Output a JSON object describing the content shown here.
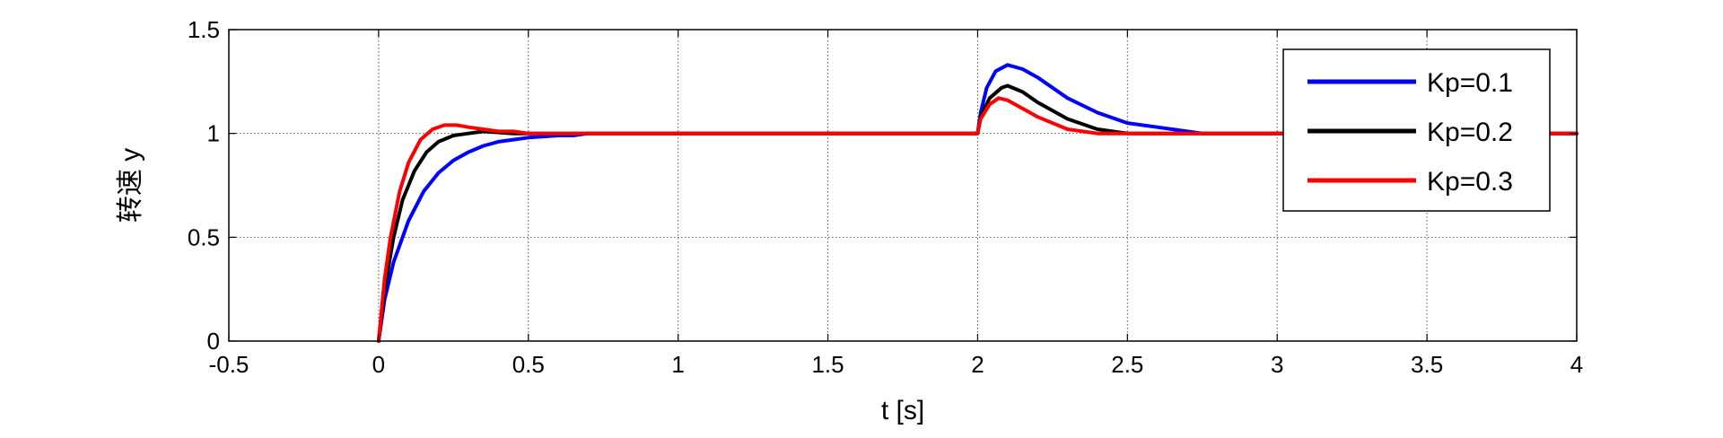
{
  "chart_data": {
    "type": "line",
    "xlabel": "t [s]",
    "ylabel": "转速 y",
    "xlim": [
      -0.5,
      4
    ],
    "ylim": [
      0,
      1.5
    ],
    "x_ticks": [
      -0.5,
      0,
      0.5,
      1,
      1.5,
      2,
      2.5,
      3,
      3.5,
      4
    ],
    "x_tick_labels": [
      "-0.5",
      "0",
      "0.5",
      "1",
      "1.5",
      "2",
      "2.5",
      "3",
      "3.5",
      "4"
    ],
    "y_ticks": [
      0,
      0.5,
      1,
      1.5
    ],
    "y_tick_labels": [
      "0",
      "0.5",
      "1",
      "1.5"
    ],
    "grid": true,
    "legend_position": "top-right",
    "series": [
      {
        "name": "Kp=0.1",
        "color": "#0000ff",
        "points": [
          [
            0,
            0
          ],
          [
            0.02,
            0.2
          ],
          [
            0.05,
            0.38
          ],
          [
            0.1,
            0.58
          ],
          [
            0.15,
            0.72
          ],
          [
            0.2,
            0.81
          ],
          [
            0.25,
            0.87
          ],
          [
            0.3,
            0.91
          ],
          [
            0.35,
            0.94
          ],
          [
            0.4,
            0.96
          ],
          [
            0.45,
            0.97
          ],
          [
            0.5,
            0.98
          ],
          [
            0.6,
            0.99
          ],
          [
            0.65,
            0.99
          ],
          [
            0.7,
            1.0
          ],
          [
            2.0,
            1.0
          ],
          [
            2.01,
            1.1
          ],
          [
            2.03,
            1.22
          ],
          [
            2.06,
            1.3
          ],
          [
            2.1,
            1.33
          ],
          [
            2.15,
            1.31
          ],
          [
            2.2,
            1.27
          ],
          [
            2.3,
            1.17
          ],
          [
            2.4,
            1.1
          ],
          [
            2.5,
            1.05
          ],
          [
            2.6,
            1.03
          ],
          [
            2.7,
            1.01
          ],
          [
            2.75,
            1.0
          ],
          [
            4.0,
            1.0
          ]
        ]
      },
      {
        "name": "Kp=0.2",
        "color": "#000000",
        "points": [
          [
            0,
            0
          ],
          [
            0.02,
            0.25
          ],
          [
            0.05,
            0.5
          ],
          [
            0.08,
            0.68
          ],
          [
            0.12,
            0.82
          ],
          [
            0.16,
            0.91
          ],
          [
            0.2,
            0.96
          ],
          [
            0.25,
            0.99
          ],
          [
            0.3,
            1.0
          ],
          [
            0.35,
            1.01
          ],
          [
            0.45,
            1.0
          ],
          [
            2.0,
            1.0
          ],
          [
            2.01,
            1.08
          ],
          [
            2.04,
            1.17
          ],
          [
            2.08,
            1.22
          ],
          [
            2.1,
            1.23
          ],
          [
            2.15,
            1.2
          ],
          [
            2.2,
            1.15
          ],
          [
            2.3,
            1.07
          ],
          [
            2.4,
            1.02
          ],
          [
            2.5,
            1.0
          ],
          [
            4.0,
            1.0
          ]
        ]
      },
      {
        "name": "Kp=0.3",
        "color": "#ff0000",
        "points": [
          [
            0,
            0
          ],
          [
            0.02,
            0.3
          ],
          [
            0.04,
            0.5
          ],
          [
            0.07,
            0.72
          ],
          [
            0.1,
            0.86
          ],
          [
            0.14,
            0.97
          ],
          [
            0.18,
            1.02
          ],
          [
            0.22,
            1.04
          ],
          [
            0.26,
            1.04
          ],
          [
            0.3,
            1.03
          ],
          [
            0.35,
            1.02
          ],
          [
            0.4,
            1.01
          ],
          [
            0.45,
            1.01
          ],
          [
            0.5,
            1.0
          ],
          [
            2.0,
            1.0
          ],
          [
            2.01,
            1.07
          ],
          [
            2.04,
            1.14
          ],
          [
            2.07,
            1.17
          ],
          [
            2.1,
            1.16
          ],
          [
            2.15,
            1.12
          ],
          [
            2.2,
            1.08
          ],
          [
            2.3,
            1.02
          ],
          [
            2.4,
            1.0
          ],
          [
            4.0,
            1.0
          ]
        ]
      }
    ]
  }
}
